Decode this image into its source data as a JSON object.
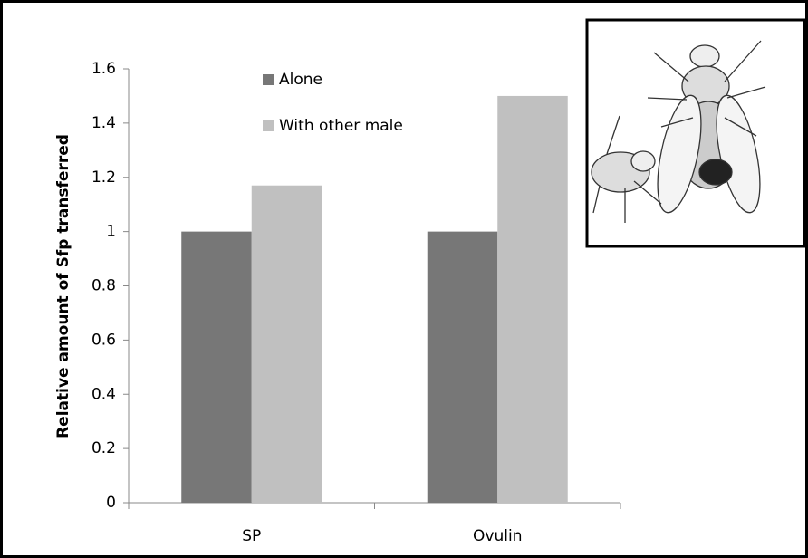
{
  "chart_data": {
    "type": "bar",
    "y_axis_label": "Relative amount of Sfp transferred",
    "categories": [
      "SP",
      "Ovulin"
    ],
    "series": [
      {
        "name": "Alone",
        "color": "#777777",
        "values": [
          1,
          1
        ]
      },
      {
        "name": "With other male",
        "color": "#c0c0c0",
        "values": [
          1.17,
          1.5
        ]
      }
    ],
    "ylim": [
      0,
      1.6
    ],
    "yticks": [
      0,
      0.2,
      0.4,
      0.6,
      0.8,
      1,
      1.2,
      1.4,
      1.6
    ],
    "legend": "top-left"
  }
}
